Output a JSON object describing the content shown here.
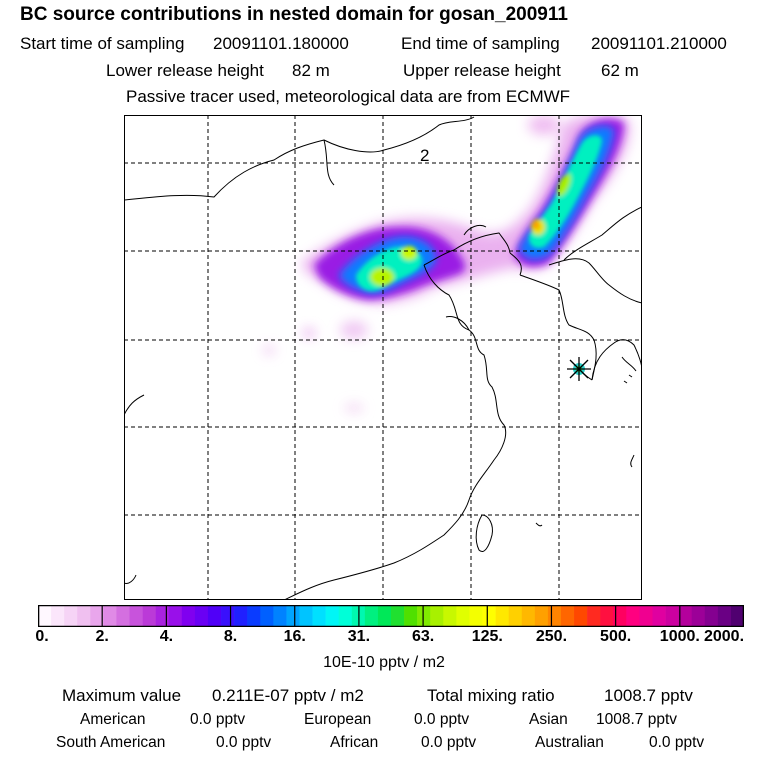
{
  "header": {
    "title": "BC  source contributions in nested domain for gosan_200911",
    "start_label": "Start time of sampling",
    "start_value": "20091101.180000",
    "end_label": "End time of sampling",
    "end_value": "20091101.210000",
    "lower_label": "Lower release height",
    "lower_value": "82 m",
    "upper_label": "Upper release height",
    "upper_value": "62 m",
    "tracer_note": "Passive tracer used, meteorological data are from ECMWF"
  },
  "map": {
    "annotation": "2",
    "receptor_marker": "gosan receptor star"
  },
  "colorbar": {
    "ticks": [
      "0.",
      "2.",
      "4.",
      "8.",
      "16.",
      "31.",
      "63.",
      "125.",
      "250.",
      "500.",
      "1000.",
      "2000."
    ],
    "units": "10E-10 pptv / m2",
    "colors": [
      "#fff8ff",
      "#fbe6fb",
      "#f6d4f6",
      "#f0c0f0",
      "#e9a6ec",
      "#e08ae6",
      "#d46fe0",
      "#c853dc",
      "#bb3ad8",
      "#aa22e0",
      "#9910ea",
      "#8000f0",
      "#6a00f4",
      "#5000f8",
      "#3a10fc",
      "#2020ff",
      "#0a3cff",
      "#0060ff",
      "#0082ff",
      "#00a4ff",
      "#00c4ff",
      "#00e0ff",
      "#00f6f6",
      "#00ffd8",
      "#00f8b0",
      "#00f080",
      "#00e858",
      "#20e030",
      "#50e000",
      "#80ea00",
      "#a8f000",
      "#c8f800",
      "#e0ff00",
      "#f4ff00",
      "#ffff00",
      "#ffe800",
      "#ffd000",
      "#ffb800",
      "#ffa000",
      "#ff8400",
      "#ff6600",
      "#ff4800",
      "#ff2a20",
      "#ff1040",
      "#ff0060",
      "#ff0080",
      "#f00090",
      "#e000a0",
      "#cc00a0",
      "#b4009c",
      "#9c0098",
      "#840090",
      "#6a0084",
      "#500070"
    ]
  },
  "stats": {
    "max_label": "Maximum value",
    "max_value": "0.211E-07 pptv / m2",
    "total_label": "Total mixing ratio",
    "total_value": "1008.7 pptv",
    "regions": [
      {
        "name": "American",
        "value": "0.0 pptv"
      },
      {
        "name": "European",
        "value": "0.0 pptv"
      },
      {
        "name": "Asian",
        "value": "1008.7 pptv"
      },
      {
        "name": "South American",
        "value": "0.0 pptv"
      },
      {
        "name": "African",
        "value": "0.0 pptv"
      },
      {
        "name": "Australian",
        "value": "0.0 pptv"
      }
    ]
  }
}
